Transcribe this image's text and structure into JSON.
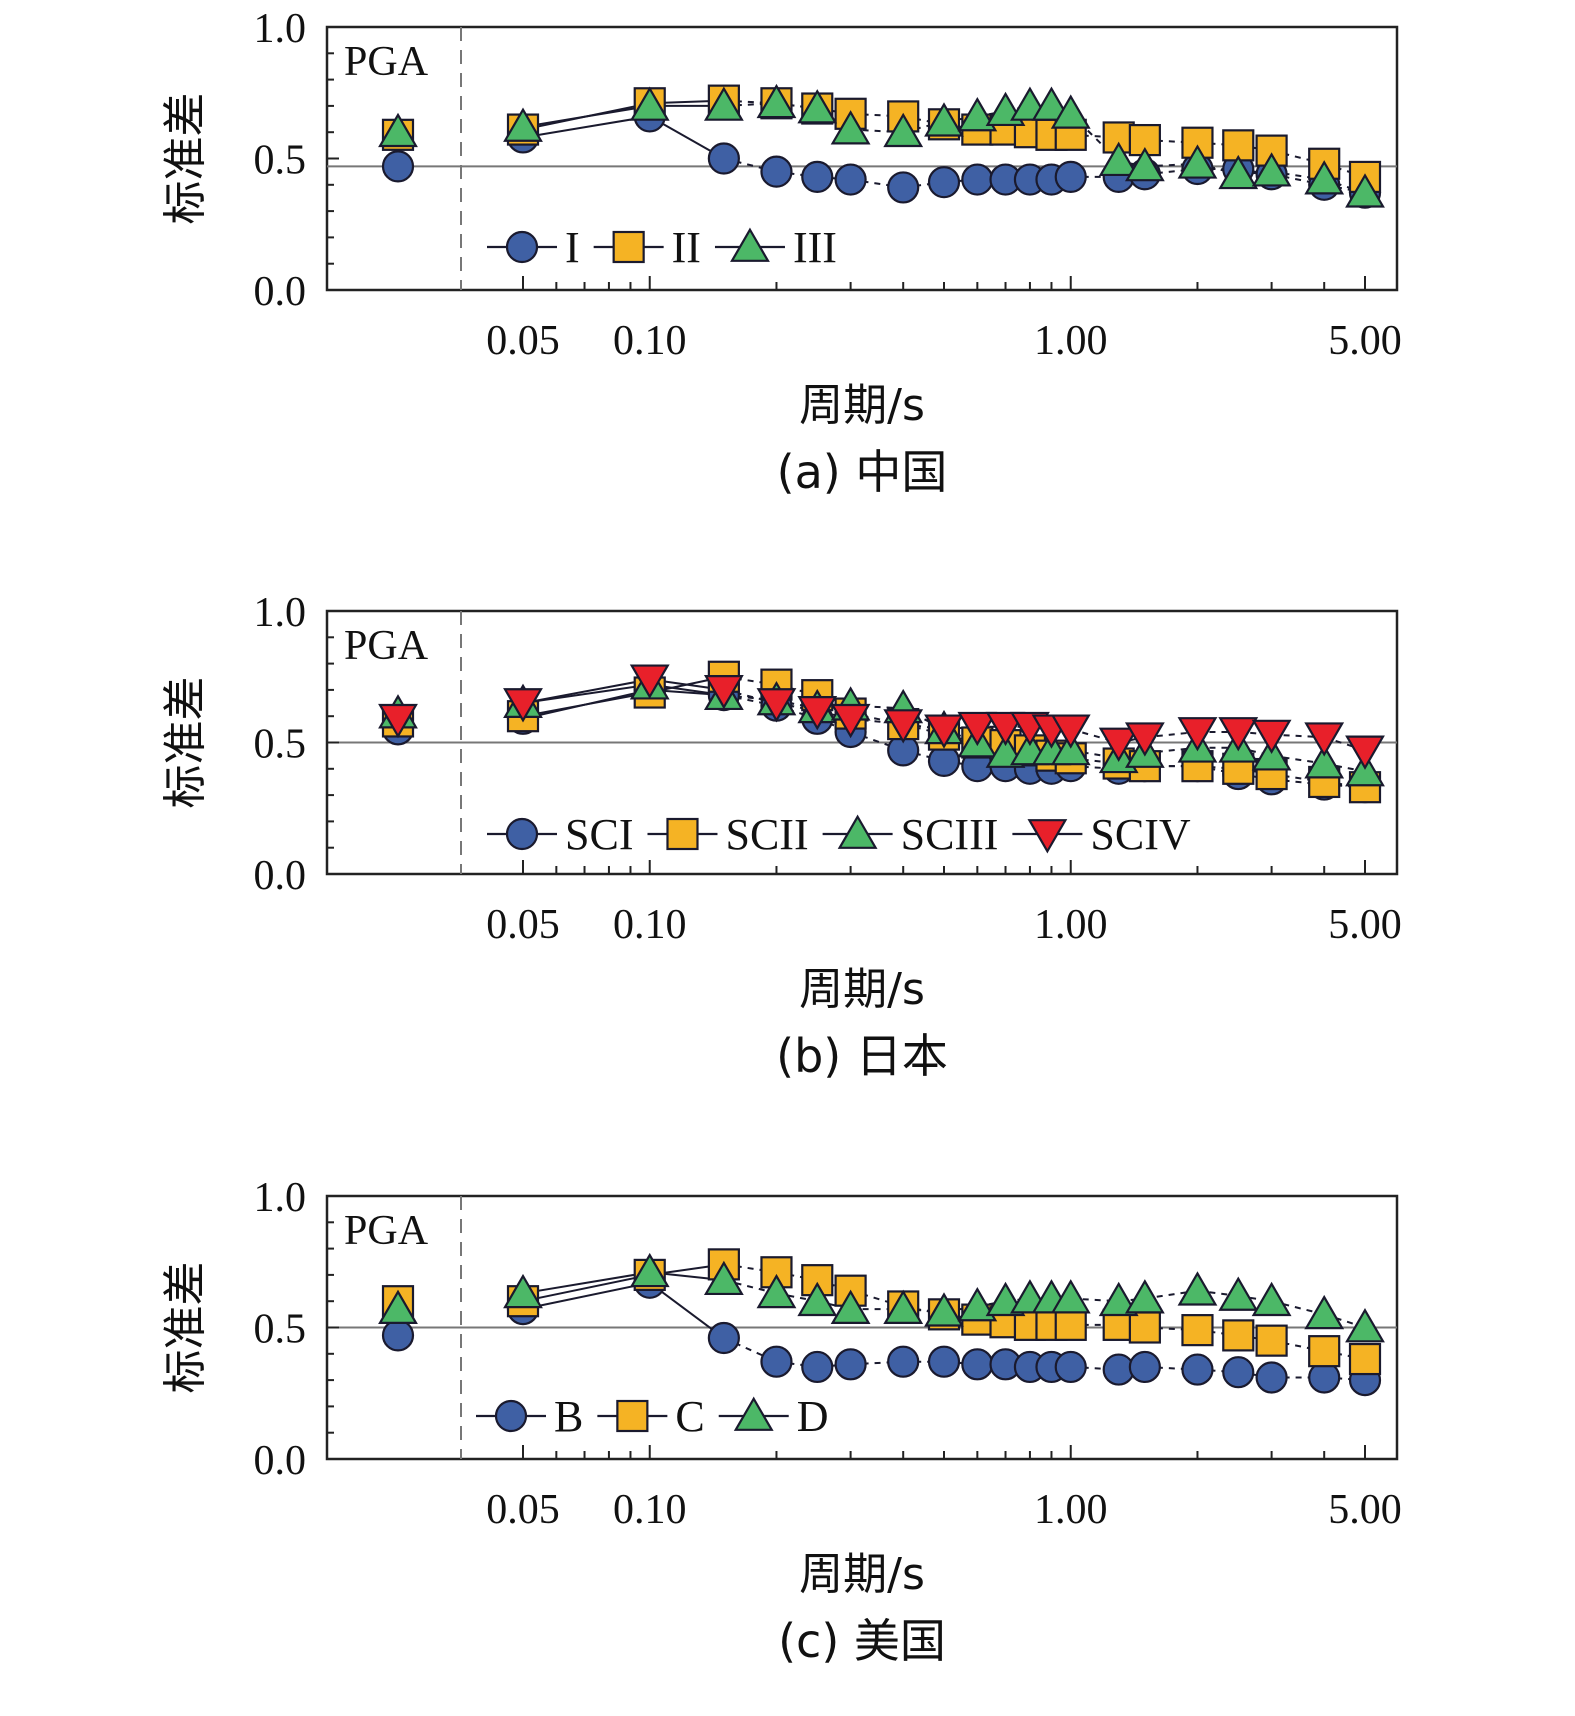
{
  "chart_data": [
    {
      "type": "scatter",
      "caption": "(a) 中国",
      "ylabel": "标准差",
      "xlabel": "周期/s",
      "xscale": "log",
      "ylim": [
        0,
        1.0
      ],
      "yticks": [
        "0.0",
        "0.5",
        "1.0"
      ],
      "xticks": [
        0.05,
        0.1,
        1.0,
        5.0
      ],
      "xtick_labels": [
        "0.05",
        "0.10",
        "1.00",
        "5.00"
      ],
      "pga_label": "PGA",
      "reference_line": 0.47,
      "periods": [
        0.05,
        0.1,
        0.15,
        0.2,
        0.25,
        0.3,
        0.4,
        0.5,
        0.6,
        0.7,
        0.8,
        0.9,
        1.0,
        1.3,
        1.5,
        2.0,
        2.5,
        3.0,
        4.0,
        5.0
      ],
      "series": [
        {
          "name": "I",
          "marker": "circle",
          "color": "#3f60a4",
          "pga": 0.47,
          "values": [
            0.58,
            0.66,
            0.5,
            0.45,
            0.43,
            0.42,
            0.39,
            0.41,
            0.42,
            0.42,
            0.42,
            0.42,
            0.43,
            0.43,
            0.44,
            0.46,
            0.46,
            0.44,
            0.4,
            0.37
          ]
        },
        {
          "name": "II",
          "marker": "square",
          "color": "#f5b324",
          "pga": 0.59,
          "values": [
            0.61,
            0.71,
            0.72,
            0.71,
            0.69,
            0.67,
            0.66,
            0.63,
            0.61,
            0.61,
            0.6,
            0.59,
            0.59,
            0.58,
            0.57,
            0.56,
            0.55,
            0.53,
            0.48,
            0.43
          ]
        },
        {
          "name": "III",
          "marker": "triangle-up",
          "color": "#4cb867",
          "pga": 0.6,
          "values": [
            0.62,
            0.7,
            0.7,
            0.71,
            0.69,
            0.61,
            0.6,
            0.64,
            0.66,
            0.68,
            0.7,
            0.7,
            0.67,
            0.49,
            0.47,
            0.48,
            0.44,
            0.45,
            0.42,
            0.37
          ]
        }
      ],
      "legend_location": "bottom-center"
    },
    {
      "type": "scatter",
      "caption": "(b) 日本",
      "ylabel": "标准差",
      "xlabel": "周期/s",
      "xscale": "log",
      "ylim": [
        0,
        1.0
      ],
      "yticks": [
        "0.0",
        "0.5",
        "1.0"
      ],
      "xticks": [
        0.05,
        0.1,
        1.0,
        5.0
      ],
      "xtick_labels": [
        "0.05",
        "0.10",
        "1.00",
        "5.00"
      ],
      "pga_label": "PGA",
      "reference_line": 0.5,
      "periods": [
        0.05,
        0.1,
        0.15,
        0.2,
        0.25,
        0.3,
        0.4,
        0.5,
        0.6,
        0.7,
        0.8,
        0.9,
        1.0,
        1.3,
        1.5,
        2.0,
        2.5,
        3.0,
        4.0,
        5.0
      ],
      "series": [
        {
          "name": "SCI",
          "marker": "circle",
          "color": "#3f60a4",
          "pga": 0.55,
          "values": [
            0.59,
            0.7,
            0.68,
            0.64,
            0.59,
            0.54,
            0.47,
            0.43,
            0.41,
            0.41,
            0.4,
            0.4,
            0.41,
            0.4,
            0.41,
            0.41,
            0.38,
            0.36,
            0.34,
            0.33
          ]
        },
        {
          "name": "SCII",
          "marker": "square",
          "color": "#f5b324",
          "pga": 0.58,
          "values": [
            0.6,
            0.69,
            0.75,
            0.72,
            0.68,
            0.61,
            0.57,
            0.53,
            0.5,
            0.49,
            0.47,
            0.45,
            0.44,
            0.42,
            0.41,
            0.41,
            0.4,
            0.38,
            0.35,
            0.33
          ]
        },
        {
          "name": "SCIII",
          "marker": "triangle-up",
          "color": "#4cb867",
          "pga": 0.61,
          "values": [
            0.65,
            0.72,
            0.68,
            0.66,
            0.63,
            0.64,
            0.63,
            0.55,
            0.5,
            0.46,
            0.47,
            0.47,
            0.47,
            0.44,
            0.46,
            0.48,
            0.48,
            0.45,
            0.42,
            0.39
          ]
        },
        {
          "name": "SCIV",
          "marker": "triangle-down",
          "color": "#e8202a",
          "pga": 0.59,
          "values": [
            0.65,
            0.74,
            0.7,
            0.65,
            0.62,
            0.59,
            0.57,
            0.55,
            0.56,
            0.56,
            0.56,
            0.55,
            0.55,
            0.5,
            0.52,
            0.54,
            0.54,
            0.53,
            0.52,
            0.47
          ]
        }
      ],
      "legend_location": "bottom-center"
    },
    {
      "type": "scatter",
      "caption": "(c) 美国",
      "ylabel": "标准差",
      "xlabel": "周期/s",
      "xscale": "log",
      "ylim": [
        0,
        1.0
      ],
      "yticks": [
        "0.0",
        "0.5",
        "1.0"
      ],
      "xticks": [
        0.05,
        0.1,
        1.0,
        5.0
      ],
      "xtick_labels": [
        "0.05",
        "0.10",
        "1.00",
        "5.00"
      ],
      "pga_label": "PGA",
      "reference_line": 0.5,
      "periods": [
        0.05,
        0.1,
        0.15,
        0.2,
        0.25,
        0.3,
        0.4,
        0.5,
        0.6,
        0.7,
        0.8,
        0.9,
        1.0,
        1.3,
        1.5,
        2.0,
        2.5,
        3.0,
        4.0,
        5.0
      ],
      "series": [
        {
          "name": "B",
          "marker": "circle",
          "color": "#3f60a4",
          "pga": 0.47,
          "values": [
            0.57,
            0.67,
            0.46,
            0.37,
            0.35,
            0.36,
            0.37,
            0.37,
            0.36,
            0.36,
            0.35,
            0.35,
            0.35,
            0.34,
            0.35,
            0.34,
            0.33,
            0.31,
            0.31,
            0.3
          ]
        },
        {
          "name": "C",
          "marker": "square",
          "color": "#f5b324",
          "pga": 0.6,
          "values": [
            0.6,
            0.7,
            0.74,
            0.71,
            0.68,
            0.64,
            0.58,
            0.55,
            0.53,
            0.52,
            0.51,
            0.51,
            0.51,
            0.51,
            0.5,
            0.49,
            0.47,
            0.45,
            0.41,
            0.38
          ]
        },
        {
          "name": "D",
          "marker": "triangle-up",
          "color": "#4cb867",
          "pga": 0.57,
          "values": [
            0.63,
            0.71,
            0.68,
            0.63,
            0.6,
            0.57,
            0.57,
            0.56,
            0.58,
            0.6,
            0.61,
            0.61,
            0.61,
            0.6,
            0.61,
            0.64,
            0.62,
            0.6,
            0.55,
            0.5
          ]
        }
      ],
      "legend_location": "bottom-center"
    }
  ]
}
